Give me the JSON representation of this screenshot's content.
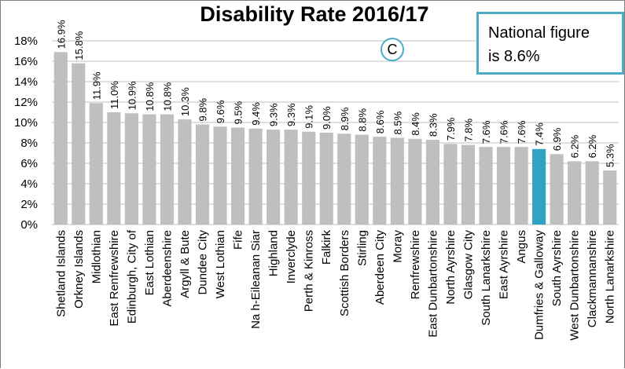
{
  "chart_data": {
    "type": "bar",
    "title": "Disability Rate 2016/17",
    "xlabel": "",
    "ylabel": "",
    "ylim": [
      0,
      18
    ],
    "yticks": [
      "0%",
      "2%",
      "4%",
      "6%",
      "8%",
      "10%",
      "12%",
      "14%",
      "16%",
      "18%"
    ],
    "grid": true,
    "categories": [
      "Shetland Islands",
      "Orkney Islands",
      "Midlothian",
      "East Renfrewshire",
      "Edinburgh, City of",
      "East Lothian",
      "Aberdeenshire",
      "Argyll & Bute",
      "Dundee City",
      "West Lothian",
      "Fife",
      "Na h-Eileanan Siar",
      "Highland",
      "Inverclyde",
      "Perth & Kinross",
      "Falkirk",
      "Scottish Borders",
      "Stirling",
      "Aberdeen City",
      "Moray",
      "Renfrewshire",
      "East Dunbartonshire",
      "North Ayrshire",
      "Glasgow City",
      "South Lanarkshire",
      "East Ayrshire",
      "Angus",
      "Dumfries & Galloway",
      "South Ayrshire",
      "West Dunbartonshire",
      "Clackmannanshire",
      "North Lanarkshire"
    ],
    "values": [
      16.9,
      15.8,
      11.9,
      11.0,
      10.9,
      10.8,
      10.8,
      10.3,
      9.8,
      9.6,
      9.5,
      9.4,
      9.3,
      9.3,
      9.1,
      9.0,
      8.9,
      8.8,
      8.6,
      8.5,
      8.4,
      8.3,
      7.9,
      7.8,
      7.6,
      7.6,
      7.6,
      7.4,
      6.9,
      6.2,
      6.2,
      5.3
    ],
    "labels": [
      "16.9%",
      "15.8%",
      "11.9%",
      "11.0%",
      "10.9%",
      "10.8%",
      "10.8%",
      "10.3%",
      "9.8%",
      "9.6%",
      "9.5%",
      "9.4%",
      "9.3%",
      "9.3%",
      "9.1%",
      "9.0%",
      "8.9%",
      "8.8%",
      "8.6%",
      "8.5%",
      "8.4%",
      "8.3%",
      "7.9%",
      "7.8%",
      "7.6%",
      "7.6%",
      "7.6%",
      "7.4%",
      "6.9%",
      "6.2%",
      "6.2%",
      "5.3%"
    ],
    "highlight_category": "Dumfries & Galloway",
    "colors": {
      "bar": "#bfbfbf",
      "highlight": "#31a2c3",
      "grid": "#bfbfbf"
    }
  },
  "annotation": {
    "line1": "National figure",
    "line2": "is 8.6%",
    "border_color": "#4bacc6"
  },
  "marker": {
    "label": "C"
  }
}
